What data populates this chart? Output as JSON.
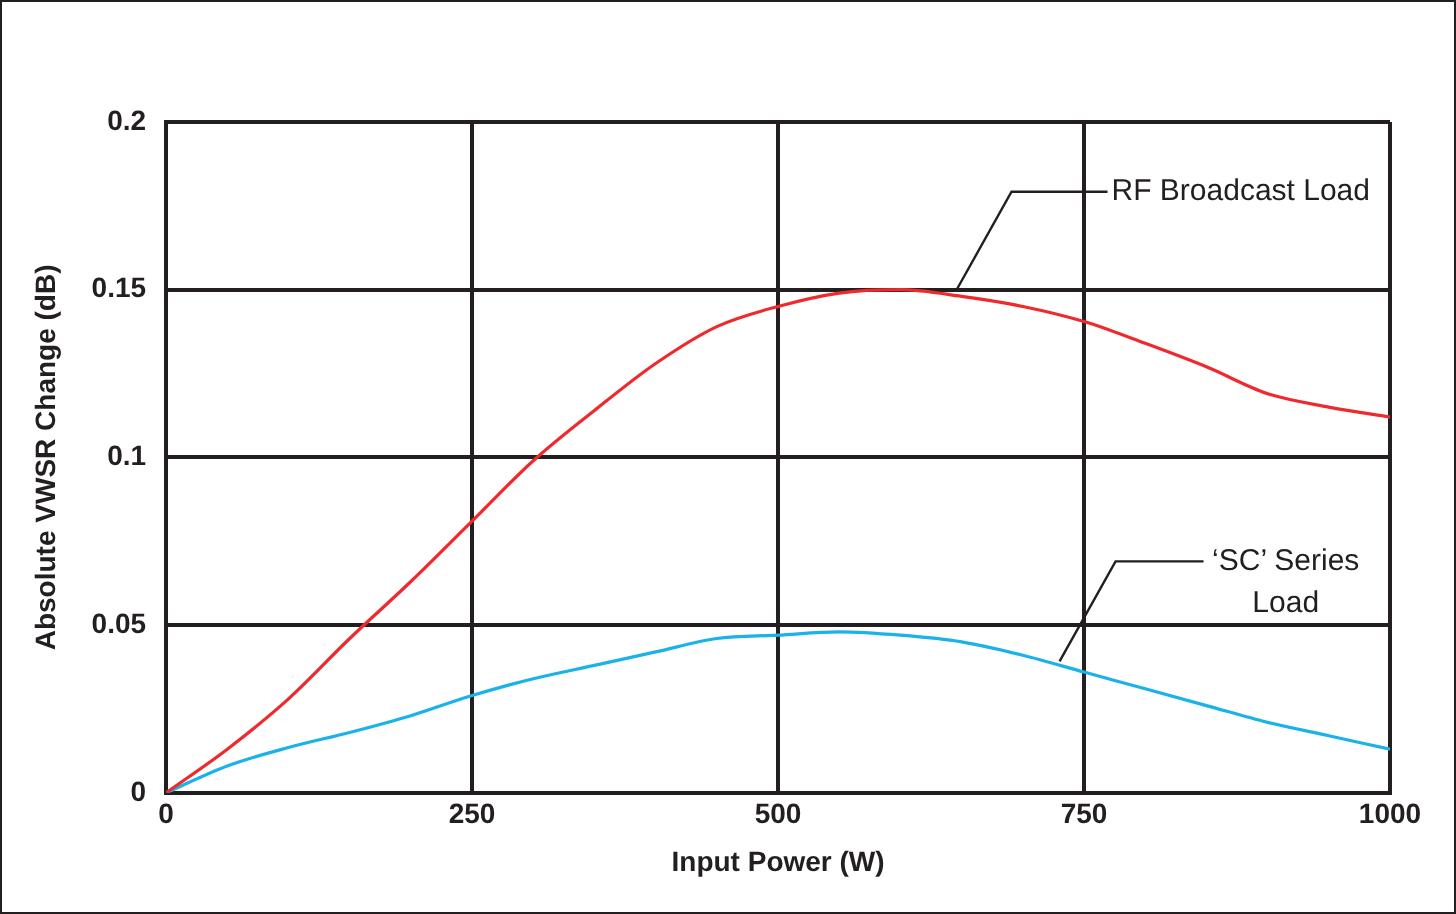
{
  "chart_data": {
    "type": "line",
    "xlabel": "Input Power (W)",
    "ylabel": "Absolute VWSR Change (dB)",
    "x": [
      0,
      50,
      100,
      150,
      200,
      250,
      300,
      350,
      400,
      450,
      500,
      550,
      600,
      650,
      700,
      750,
      800,
      850,
      900,
      950,
      1000
    ],
    "series": [
      {
        "name": "RF Broadcast Load",
        "color": "#ee2a2e",
        "values": [
          0,
          0.013,
          0.028,
          0.046,
          0.063,
          0.081,
          0.099,
          0.114,
          0.128,
          0.139,
          0.145,
          0.149,
          0.15,
          0.148,
          0.145,
          0.1405,
          0.134,
          0.127,
          0.119,
          0.115,
          0.112
        ]
      },
      {
        "name": "‘SC’ Series Load",
        "color": "#1ab2e8",
        "values": [
          0,
          0.008,
          0.0135,
          0.018,
          0.023,
          0.029,
          0.034,
          0.038,
          0.042,
          0.046,
          0.047,
          0.048,
          0.047,
          0.045,
          0.041,
          0.036,
          0.031,
          0.026,
          0.021,
          0.017,
          0.013
        ]
      }
    ],
    "xlim": [
      0,
      1000
    ],
    "xticks": [
      0,
      250,
      500,
      750,
      1000
    ],
    "ylim": [
      0,
      0.2
    ],
    "yticks": [
      0,
      0.05,
      0.1,
      0.15,
      0.2
    ],
    "grid": true,
    "legend": false,
    "marker": "none",
    "line_style": "solid"
  }
}
